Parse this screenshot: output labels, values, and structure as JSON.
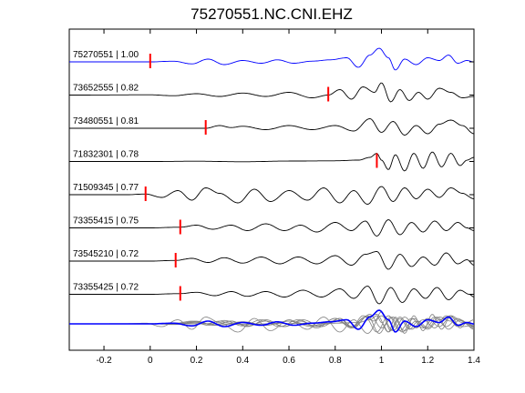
{
  "chart_data": {
    "type": "line",
    "title": "75270551.NC.CNI.EHZ",
    "xlim": [
      -0.35,
      1.4
    ],
    "x_ticks": [
      -0.2,
      0,
      0.2,
      0.4,
      0.6,
      0.8,
      1,
      1.2,
      1.4
    ],
    "x_tick_labels": [
      "-0.2",
      "0",
      "0.2",
      "0.4",
      "0.6",
      "0.8",
      "1",
      "1.2",
      "1.4"
    ],
    "grid": false,
    "reference_trace_color": "#0000ff",
    "trace_color": "#000000",
    "stack_trace_color": "#808080",
    "pick_color": "#ff0000",
    "series": [
      {
        "name": "75270551 | 1.00",
        "pick_time": 0.0,
        "reference": true,
        "t": [
          -0.35,
          0.0,
          0.1,
          0.18,
          0.25,
          0.32,
          0.4,
          0.48,
          0.55,
          0.62,
          0.7,
          0.78,
          0.85,
          0.9,
          0.95,
          0.99,
          1.03,
          1.06,
          1.1,
          1.15,
          1.2,
          1.25,
          1.29,
          1.33,
          1.37,
          1.4
        ],
        "amp": [
          0,
          0,
          0.05,
          -0.15,
          0.2,
          -0.2,
          0.1,
          -0.1,
          0.15,
          -0.1,
          0.05,
          0.15,
          0.3,
          -0.4,
          0.5,
          1.0,
          0.3,
          -0.6,
          0.2,
          -0.2,
          0.3,
          0.1,
          0.5,
          -0.1,
          0.1,
          0
        ]
      },
      {
        "name": "73652555 | 0.82",
        "pick_time": 0.77,
        "t": [
          -0.35,
          0.0,
          0.1,
          0.2,
          0.3,
          0.4,
          0.5,
          0.6,
          0.7,
          0.77,
          0.82,
          0.87,
          0.92,
          0.97,
          1.0,
          1.04,
          1.08,
          1.12,
          1.16,
          1.2,
          1.25,
          1.3,
          1.35,
          1.4
        ],
        "amp": [
          0,
          0.02,
          -0.05,
          0.1,
          -0.1,
          0.15,
          -0.1,
          0.2,
          -0.2,
          0.0,
          0.4,
          -0.3,
          0.6,
          0.2,
          0.9,
          -0.5,
          0.4,
          -0.4,
          0.2,
          -0.3,
          0.5,
          0.2,
          -0.2,
          -0.1
        ]
      },
      {
        "name": "73480551 | 0.81",
        "pick_time": 0.24,
        "t": [
          -0.35,
          0.0,
          0.1,
          0.2,
          0.24,
          0.3,
          0.35,
          0.4,
          0.5,
          0.6,
          0.7,
          0.8,
          0.88,
          0.95,
          1.0,
          1.05,
          1.1,
          1.15,
          1.2,
          1.25,
          1.3,
          1.35,
          1.4
        ],
        "amp": [
          0,
          0,
          0,
          0,
          0,
          0.2,
          0.05,
          0.15,
          -0.1,
          0.2,
          -0.1,
          0.2,
          -0.2,
          0.7,
          -0.3,
          0.5,
          -0.5,
          0.2,
          -0.4,
          0.3,
          0.6,
          0.2,
          -0.4
        ]
      },
      {
        "name": "71832301 | 0.78",
        "pick_time": 0.98,
        "t": [
          -0.35,
          0.0,
          0.2,
          0.4,
          0.6,
          0.8,
          0.9,
          0.95,
          0.98,
          1.0,
          1.03,
          1.06,
          1.1,
          1.14,
          1.18,
          1.22,
          1.26,
          1.3,
          1.34,
          1.37,
          1.4
        ],
        "amp": [
          0,
          0,
          0.02,
          -0.02,
          0.03,
          0.05,
          0.1,
          0.3,
          0.6,
          0.1,
          -0.6,
          0.5,
          -0.7,
          0.6,
          -0.5,
          0.7,
          -0.4,
          0.6,
          -0.3,
          0.1,
          0.3
        ]
      },
      {
        "name": "71509345 | 0.77",
        "pick_time": -0.02,
        "t": [
          -0.35,
          -0.1,
          -0.02,
          0.05,
          0.12,
          0.18,
          0.24,
          0.3,
          0.38,
          0.45,
          0.52,
          0.6,
          0.68,
          0.75,
          0.82,
          0.88,
          0.94,
          1.0,
          1.05,
          1.1,
          1.15,
          1.2,
          1.25,
          1.3,
          1.35,
          1.4
        ],
        "amp": [
          0,
          0,
          0.05,
          -0.2,
          0.3,
          -0.4,
          0.5,
          0.1,
          -0.6,
          0.4,
          -0.5,
          0.3,
          -0.4,
          0.5,
          -0.6,
          0.3,
          -0.7,
          0.6,
          -0.5,
          0.5,
          -0.3,
          0.4,
          -0.2,
          0.5,
          0.1,
          -0.3
        ]
      },
      {
        "name": "73355415 | 0.75",
        "pick_time": 0.13,
        "t": [
          -0.35,
          0.0,
          0.13,
          0.2,
          0.27,
          0.35,
          0.42,
          0.5,
          0.58,
          0.65,
          0.72,
          0.8,
          0.87,
          0.93,
          0.98,
          1.03,
          1.08,
          1.13,
          1.18,
          1.23,
          1.28,
          1.33,
          1.37,
          1.4
        ],
        "amp": [
          0,
          0,
          0.05,
          0.2,
          -0.1,
          0.2,
          -0.2,
          0.3,
          -0.2,
          0.2,
          -0.3,
          0.4,
          -0.2,
          0.5,
          -0.6,
          0.6,
          -0.5,
          0.4,
          -0.3,
          0.5,
          -0.2,
          0.4,
          0.0,
          -0.2
        ]
      },
      {
        "name": "73545210 | 0.72",
        "pick_time": 0.11,
        "t": [
          -0.35,
          0.0,
          0.11,
          0.18,
          0.25,
          0.32,
          0.4,
          0.48,
          0.56,
          0.64,
          0.72,
          0.8,
          0.87,
          0.93,
          0.98,
          1.03,
          1.08,
          1.13,
          1.18,
          1.23,
          1.28,
          1.33,
          1.37,
          1.4
        ],
        "amp": [
          0,
          0,
          0.05,
          0.2,
          -0.1,
          0.25,
          -0.15,
          0.3,
          -0.2,
          0.3,
          -0.2,
          0.4,
          -0.3,
          0.5,
          0.7,
          -0.6,
          0.5,
          -0.4,
          0.3,
          -0.3,
          0.6,
          -0.2,
          0.1,
          -0.3
        ]
      },
      {
        "name": "73355425 | 0.72",
        "pick_time": 0.13,
        "t": [
          -0.35,
          0.0,
          0.13,
          0.2,
          0.28,
          0.35,
          0.42,
          0.5,
          0.58,
          0.66,
          0.74,
          0.82,
          0.88,
          0.94,
          0.99,
          1.04,
          1.09,
          1.14,
          1.19,
          1.24,
          1.29,
          1.34,
          1.38,
          1.4
        ],
        "amp": [
          0,
          0,
          0.05,
          0.15,
          -0.1,
          0.2,
          -0.15,
          0.2,
          -0.2,
          0.3,
          -0.2,
          0.4,
          -0.3,
          0.6,
          -0.7,
          0.5,
          -0.6,
          0.4,
          -0.3,
          0.5,
          -0.4,
          0.3,
          0.0,
          -0.2
        ]
      }
    ]
  }
}
